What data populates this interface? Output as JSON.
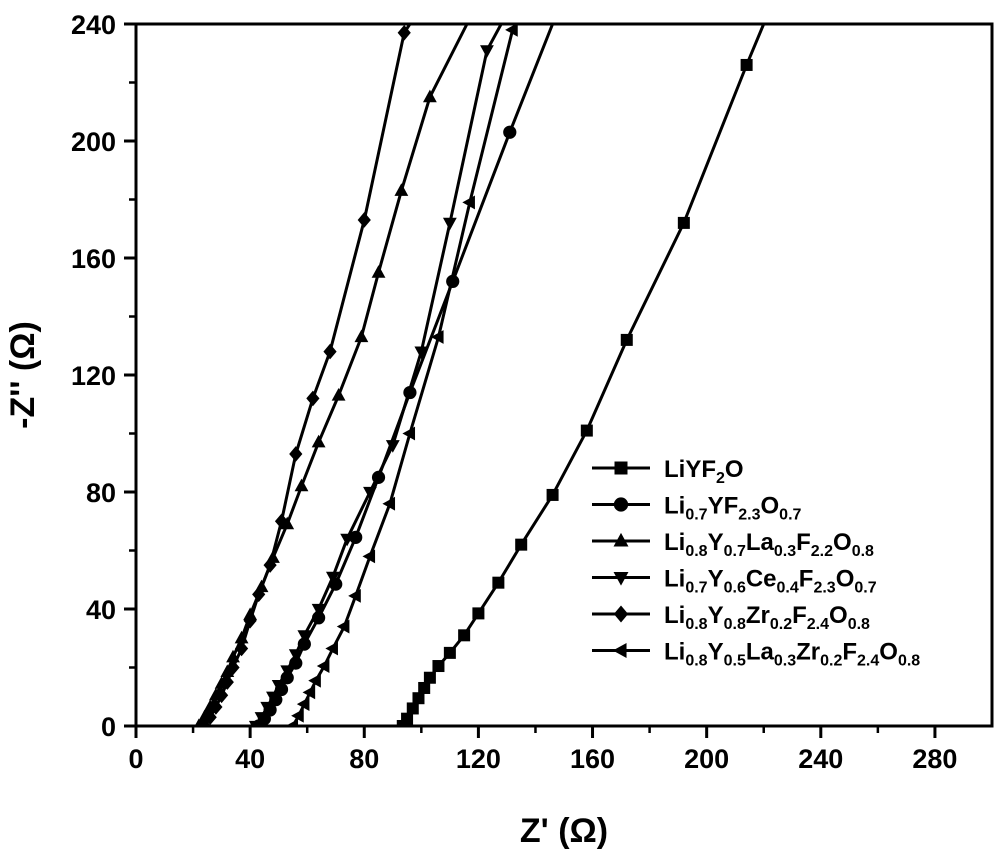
{
  "chart_data": {
    "type": "line",
    "xlabel": "Z' (Ω)",
    "ylabel": "-Z'' (Ω)",
    "xlim": [
      0,
      300
    ],
    "ylim": [
      0,
      240
    ],
    "xticks": [
      0,
      40,
      80,
      120,
      160,
      200,
      240,
      280
    ],
    "yticks": [
      0,
      40,
      80,
      120,
      160,
      200,
      240
    ],
    "grid": false,
    "legend_position": "bottom-right",
    "series": [
      {
        "name": "LiYF2O",
        "legend": [
          {
            "t": "LiYF"
          },
          {
            "t": "2",
            "sub": true
          },
          {
            "t": "O"
          }
        ],
        "marker": "square",
        "points": [
          [
            93.5,
            0
          ],
          [
            95,
            2.5
          ],
          [
            97,
            6
          ],
          [
            99,
            9.5
          ],
          [
            101,
            13
          ],
          [
            103,
            16.5
          ],
          [
            106,
            20.5
          ],
          [
            110,
            25
          ],
          [
            115,
            31
          ],
          [
            120,
            38.5
          ],
          [
            127,
            49
          ],
          [
            135,
            62
          ],
          [
            146,
            79
          ],
          [
            158,
            101
          ],
          [
            172,
            132
          ],
          [
            192,
            172
          ],
          [
            214,
            226
          ],
          [
            220,
            240
          ]
        ]
      },
      {
        "name": "Li0.7YF2.3O0.7",
        "legend": [
          {
            "t": "Li"
          },
          {
            "t": "0.7",
            "sub": true
          },
          {
            "t": "YF"
          },
          {
            "t": "2.3",
            "sub": true
          },
          {
            "t": "O"
          },
          {
            "t": "0.7",
            "sub": true
          }
        ],
        "marker": "circle",
        "points": [
          [
            43,
            0
          ],
          [
            45,
            2.5
          ],
          [
            47,
            5.5
          ],
          [
            49,
            9
          ],
          [
            51,
            12.5
          ],
          [
            53,
            16.5
          ],
          [
            56,
            21.5
          ],
          [
            59,
            28
          ],
          [
            64,
            37
          ],
          [
            70,
            48.5
          ],
          [
            77,
            64.5
          ],
          [
            85,
            85
          ],
          [
            96,
            114
          ],
          [
            111,
            152
          ],
          [
            131,
            203
          ],
          [
            146,
            240
          ]
        ]
      },
      {
        "name": "Li0.8Y0.7La0.3F2.2O0.8",
        "legend": [
          {
            "t": "Li"
          },
          {
            "t": "0.8",
            "sub": true
          },
          {
            "t": "Y"
          },
          {
            "t": "0.7",
            "sub": true
          },
          {
            "t": "La"
          },
          {
            "t": "0.3",
            "sub": true
          },
          {
            "t": "F"
          },
          {
            "t": "2.2",
            "sub": true
          },
          {
            "t": "O"
          },
          {
            "t": "0.8",
            "sub": true
          }
        ],
        "marker": "triangle-up",
        "points": [
          [
            22,
            0
          ],
          [
            24,
            3
          ],
          [
            26,
            6.5
          ],
          [
            28,
            10.5
          ],
          [
            30,
            14.5
          ],
          [
            32,
            18.5
          ],
          [
            34,
            23.5
          ],
          [
            37,
            30
          ],
          [
            40,
            38
          ],
          [
            44,
            47.5
          ],
          [
            48,
            57.5
          ],
          [
            53,
            69
          ],
          [
            58,
            82
          ],
          [
            64,
            97
          ],
          [
            71,
            113
          ],
          [
            79,
            133
          ],
          [
            85,
            155
          ],
          [
            93,
            183
          ],
          [
            103,
            215
          ],
          [
            116,
            240
          ]
        ]
      },
      {
        "name": "Li0.7Y0.6Ce0.4F2.3O0.7",
        "legend": [
          {
            "t": "Li"
          },
          {
            "t": "0.7",
            "sub": true
          },
          {
            "t": "Y"
          },
          {
            "t": "0.6",
            "sub": true
          },
          {
            "t": "Ce"
          },
          {
            "t": "0.4",
            "sub": true
          },
          {
            "t": "F"
          },
          {
            "t": "2.3",
            "sub": true
          },
          {
            "t": "O"
          },
          {
            "t": "0.7",
            "sub": true
          }
        ],
        "marker": "triangle-down",
        "points": [
          [
            42,
            0
          ],
          [
            44,
            3
          ],
          [
            46,
            6.5
          ],
          [
            48,
            10
          ],
          [
            50,
            14
          ],
          [
            53,
            19
          ],
          [
            56,
            24.5
          ],
          [
            59,
            31
          ],
          [
            64,
            40
          ],
          [
            69,
            51
          ],
          [
            74,
            64
          ],
          [
            82,
            80
          ],
          [
            90,
            96
          ],
          [
            100,
            128
          ],
          [
            110,
            172
          ],
          [
            123,
            231
          ],
          [
            128,
            240
          ]
        ]
      },
      {
        "name": "Li0.8Y0.8Zr0.2F2.4O0.8",
        "legend": [
          {
            "t": "Li"
          },
          {
            "t": "0.8",
            "sub": true
          },
          {
            "t": "Y"
          },
          {
            "t": "0.8",
            "sub": true
          },
          {
            "t": "Zr"
          },
          {
            "t": "0.2",
            "sub": true
          },
          {
            "t": "F"
          },
          {
            "t": "2.4",
            "sub": true
          },
          {
            "t": "O"
          },
          {
            "t": "0.8",
            "sub": true
          }
        ],
        "marker": "diamond",
        "points": [
          [
            24,
            0
          ],
          [
            26,
            3
          ],
          [
            28,
            6.5
          ],
          [
            30,
            10.5
          ],
          [
            32,
            15
          ],
          [
            34,
            20
          ],
          [
            37,
            26.5
          ],
          [
            40,
            36
          ],
          [
            43,
            45
          ],
          [
            47,
            55
          ],
          [
            51,
            70
          ],
          [
            56,
            93
          ],
          [
            62,
            112
          ],
          [
            68,
            128
          ],
          [
            80,
            173
          ],
          [
            94,
            237
          ],
          [
            96,
            240
          ]
        ]
      },
      {
        "name": "Li0.8Y0.5La0.3Zr0.2F2.4O0.8",
        "legend": [
          {
            "t": "Li"
          },
          {
            "t": "0.8",
            "sub": true
          },
          {
            "t": "Y"
          },
          {
            "t": "0.5",
            "sub": true
          },
          {
            "t": "La"
          },
          {
            "t": "0.3",
            "sub": true
          },
          {
            "t": "Zr"
          },
          {
            "t": "0.2",
            "sub": true
          },
          {
            "t": "F"
          },
          {
            "t": "2.4",
            "sub": true
          },
          {
            "t": "O"
          },
          {
            "t": "0.8",
            "sub": true
          }
        ],
        "marker": "triangle-left",
        "points": [
          [
            55,
            0
          ],
          [
            57,
            3.5
          ],
          [
            59,
            7.5
          ],
          [
            61,
            11.5
          ],
          [
            63,
            15.5
          ],
          [
            66,
            20.5
          ],
          [
            69,
            26.5
          ],
          [
            73,
            34
          ],
          [
            77,
            44.5
          ],
          [
            82,
            58
          ],
          [
            89,
            76
          ],
          [
            96,
            100
          ],
          [
            106,
            133
          ],
          [
            117,
            179
          ],
          [
            132,
            238
          ],
          [
            133,
            240
          ]
        ]
      }
    ]
  }
}
